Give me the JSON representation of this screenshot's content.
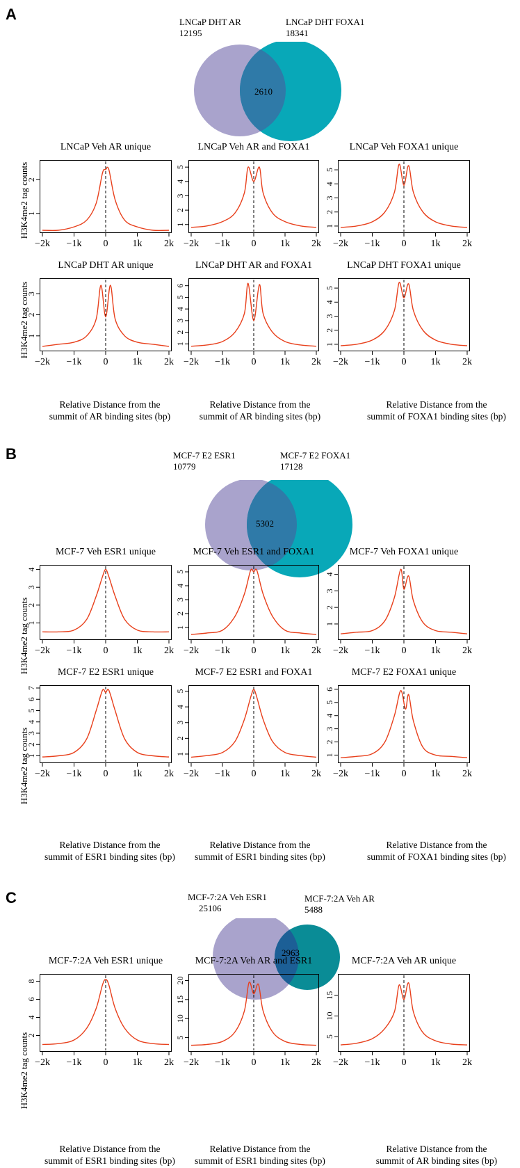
{
  "colors": {
    "curve": "#e8401c",
    "venn_left": "#a9a3cc",
    "venn_right": "#08a8b8",
    "venn_overlap": "#2f7aa8"
  },
  "panels": [
    {
      "letter": "A",
      "venn": {
        "left": {
          "name": "LNCaP DHT AR",
          "count": "12195"
        },
        "right": {
          "name": "LNCaP DHT FOXA1",
          "count": "18341"
        },
        "overlap": "2610"
      },
      "ylabel": "H3K4me2 tag counts",
      "xcaptions": [
        "Relative Distance from the\nsummit of AR binding sites (bp)",
        "Relative Distance from the\nsummit of AR binding sites (bp)",
        "Relative Distance from the\nsummit of FOXA1 binding sites (bp)"
      ]
    },
    {
      "letter": "B",
      "venn": {
        "left": {
          "name": "MCF-7 E2 ESR1",
          "count": "10779"
        },
        "right": {
          "name": "MCF-7 E2 FOXA1",
          "count": "17128"
        },
        "overlap": "5302"
      },
      "ylabel": "H3K4me2 tag counts",
      "xcaptions": [
        "Relative Distance from the\nsummit of ESR1 binding sites (bp)",
        "Relative Distance from the\nsummit of ESR1 binding sites (bp)",
        "Relative Distance from the\nsummit of FOXA1 binding sites (bp)"
      ]
    },
    {
      "letter": "C",
      "venn": {
        "left": {
          "name": "MCF-7:2A Veh ESR1",
          "count": "25106"
        },
        "right": {
          "name": "MCF-7:2A Veh AR",
          "count": "5488"
        },
        "overlap": "2963"
      },
      "ylabel": "H3K4me2 tag counts",
      "xcaptions": [
        "Relative Distance from the\nsummit of ESR1 binding sites (bp)",
        "Relative Distance from the\nsummit of ESR1 binding sites (bp)",
        "Relative Distance from the\nsummit of AR binding sites (bp)"
      ]
    }
  ],
  "chart_data": [
    {
      "type": "line",
      "title": "LNCaP  Veh AR unique",
      "xlabel": "",
      "ylabel": "H3K4me2 tag counts",
      "xlim": [
        -2000,
        2000
      ],
      "ylim": [
        0.5,
        2.5
      ],
      "xticks": [
        "-2k",
        "-1k",
        "0",
        "1k",
        "2k"
      ],
      "yticks": [
        1,
        2
      ],
      "x": [
        -2000,
        -1500,
        -1000,
        -600,
        -300,
        -100,
        0,
        100,
        300,
        600,
        1000,
        1500,
        2000
      ],
      "values": [
        0.5,
        0.5,
        0.6,
        0.8,
        1.3,
        2.2,
        2.3,
        2.3,
        1.4,
        0.8,
        0.6,
        0.5,
        0.5
      ]
    },
    {
      "type": "line",
      "title": "LNCaP  Veh AR and FOXA1",
      "xlabel": "",
      "ylabel": "",
      "xlim": [
        -2000,
        2000
      ],
      "ylim": [
        0.6,
        5.3
      ],
      "xticks": [
        "-2k",
        "-1k",
        "0",
        "1k",
        "2k"
      ],
      "yticks": [
        1,
        2,
        3,
        4,
        5
      ],
      "x": [
        -2000,
        -1500,
        -1000,
        -600,
        -300,
        -180,
        0,
        180,
        300,
        600,
        1000,
        1500,
        2000
      ],
      "values": [
        0.8,
        0.9,
        1.2,
        1.8,
        3.2,
        5.0,
        4.0,
        5.0,
        3.2,
        1.8,
        1.2,
        0.9,
        0.8
      ]
    },
    {
      "type": "line",
      "title": "LNCaP Veh FOXA1 unique",
      "xlabel": "",
      "ylabel": "",
      "xlim": [
        -2000,
        2000
      ],
      "ylim": [
        0.7,
        5.5
      ],
      "xticks": [
        "-2k",
        "-1k",
        "0",
        "1k",
        "2k"
      ],
      "yticks": [
        1,
        2,
        3,
        4,
        5
      ],
      "x": [
        -2000,
        -1500,
        -1000,
        -600,
        -300,
        -150,
        0,
        150,
        300,
        600,
        1000,
        1500,
        2000
      ],
      "values": [
        0.9,
        1.0,
        1.3,
        2.0,
        3.4,
        5.4,
        3.9,
        5.3,
        3.4,
        2.0,
        1.3,
        1.0,
        0.9
      ]
    },
    {
      "type": "line",
      "title": "LNCaP DHT AR unique",
      "xlabel": "",
      "ylabel": "H3K4me2 tag counts",
      "xlim": [
        -2000,
        2000
      ],
      "ylim": [
        0.4,
        3.6
      ],
      "xticks": [
        "-2k",
        "-1k",
        "0",
        "1k",
        "2k"
      ],
      "yticks": [
        1,
        2,
        3
      ],
      "x": [
        -2000,
        -1500,
        -1000,
        -600,
        -300,
        -150,
        0,
        150,
        300,
        600,
        1000,
        1500,
        2000
      ],
      "values": [
        0.5,
        0.6,
        0.7,
        1.0,
        1.8,
        3.4,
        1.9,
        3.4,
        1.8,
        1.0,
        0.7,
        0.6,
        0.5
      ]
    },
    {
      "type": "line",
      "title": "LNCaP  DHT AR and FOXA1",
      "xlabel": "",
      "ylabel": "",
      "xlim": [
        -2000,
        2000
      ],
      "ylim": [
        0.6,
        6.4
      ],
      "xticks": [
        "-2k",
        "-1k",
        "0",
        "1k",
        "2k"
      ],
      "yticks": [
        1,
        2,
        3,
        4,
        5,
        6
      ],
      "x": [
        -2000,
        -1500,
        -1000,
        -600,
        -300,
        -180,
        0,
        180,
        300,
        600,
        1000,
        1500,
        2000
      ],
      "values": [
        0.8,
        0.9,
        1.2,
        2.0,
        3.6,
        6.2,
        3.0,
        6.1,
        3.6,
        2.0,
        1.2,
        0.9,
        0.8
      ]
    },
    {
      "type": "line",
      "title": "LNCaP DHT FOXA1 unique",
      "xlabel": "",
      "ylabel": "",
      "xlim": [
        -2000,
        2000
      ],
      "ylim": [
        0.7,
        5.5
      ],
      "xticks": [
        "-2k",
        "-1k",
        "0",
        "1k",
        "2k"
      ],
      "yticks": [
        1,
        2,
        3,
        4,
        5
      ],
      "x": [
        -2000,
        -1500,
        -1000,
        -600,
        -300,
        -150,
        0,
        150,
        300,
        600,
        1000,
        1500,
        2000
      ],
      "values": [
        0.9,
        1.0,
        1.3,
        2.0,
        3.4,
        5.4,
        4.3,
        5.3,
        3.4,
        2.0,
        1.3,
        1.0,
        0.9
      ]
    },
    {
      "type": "line",
      "title": "MCF-7 Veh ESR1  unique",
      "xlabel": "",
      "ylabel": "H3K4me2 tag counts",
      "xlim": [
        -2000,
        2000
      ],
      "ylim": [
        0.2,
        4.1
      ],
      "xticks": [
        "-2k",
        "-1k",
        "0",
        "1k",
        "2k"
      ],
      "yticks": [
        1,
        2,
        3,
        4
      ],
      "x": [
        -2000,
        -1500,
        -1000,
        -600,
        -300,
        -100,
        0,
        100,
        300,
        600,
        1000,
        1500,
        2000
      ],
      "values": [
        0.5,
        0.5,
        0.6,
        1.2,
        2.5,
        3.6,
        4.0,
        3.6,
        2.5,
        1.2,
        0.6,
        0.5,
        0.5
      ]
    },
    {
      "type": "line",
      "title": "MCF-7 Veh ESR1 and FOXA1",
      "xlabel": "",
      "ylabel": "",
      "xlim": [
        -2000,
        2000
      ],
      "ylim": [
        0.3,
        5.3
      ],
      "xticks": [
        "-2k",
        "-1k",
        "0",
        "1k",
        "2k"
      ],
      "yticks": [
        1,
        2,
        3,
        4,
        5
      ],
      "x": [
        -2000,
        -1500,
        -1000,
        -600,
        -300,
        -100,
        0,
        100,
        300,
        600,
        1000,
        1500,
        2000
      ],
      "values": [
        0.5,
        0.6,
        0.8,
        1.8,
        3.4,
        5.1,
        5.0,
        5.1,
        3.4,
        1.8,
        0.8,
        0.6,
        0.5
      ]
    },
    {
      "type": "line",
      "title": "MCF-7 Veh FOXA1 unique",
      "xlabel": "",
      "ylabel": "",
      "xlim": [
        -2000,
        2000
      ],
      "ylim": [
        0.2,
        4.4
      ],
      "xticks": [
        "-2k",
        "-1k",
        "0",
        "1k",
        "2k"
      ],
      "yticks": [
        1,
        2,
        3,
        4
      ],
      "x": [
        -2000,
        -1500,
        -1000,
        -600,
        -300,
        -100,
        0,
        150,
        300,
        600,
        1000,
        1500,
        2000
      ],
      "values": [
        0.4,
        0.5,
        0.6,
        1.2,
        2.6,
        4.3,
        3.1,
        3.9,
        2.4,
        1.1,
        0.6,
        0.5,
        0.4
      ]
    },
    {
      "type": "line",
      "title": "MCF-7 E2 ESR1 unique",
      "xlabel": "",
      "ylabel": "H3K4me2 tag counts",
      "xlim": [
        -2000,
        2000
      ],
      "ylim": [
        0.6,
        7.0
      ],
      "xticks": [
        "-2k",
        "-1k",
        "0",
        "1k",
        "2k"
      ],
      "yticks": [
        1,
        2,
        3,
        4,
        5,
        6,
        7
      ],
      "x": [
        -2000,
        -1500,
        -1000,
        -600,
        -300,
        -100,
        0,
        100,
        300,
        600,
        1000,
        1500,
        2000
      ],
      "values": [
        0.9,
        1.0,
        1.3,
        2.5,
        5.0,
        6.8,
        6.6,
        6.8,
        5.0,
        2.5,
        1.3,
        1.0,
        0.9
      ]
    },
    {
      "type": "line",
      "title": "MCF-7 E2 ESR1 and FOXA1",
      "xlabel": "",
      "ylabel": "",
      "xlim": [
        -2000,
        2000
      ],
      "ylim": [
        0.6,
        5.2
      ],
      "xticks": [
        "-2k",
        "-1k",
        "0",
        "1k",
        "2k"
      ],
      "yticks": [
        1,
        2,
        3,
        4,
        5
      ],
      "x": [
        -2000,
        -1500,
        -1000,
        -600,
        -300,
        -100,
        0,
        100,
        300,
        600,
        1000,
        1500,
        2000
      ],
      "values": [
        0.8,
        0.9,
        1.1,
        1.8,
        3.2,
        4.6,
        5.1,
        4.6,
        3.2,
        1.8,
        1.1,
        0.9,
        0.8
      ]
    },
    {
      "type": "line",
      "title": "MCF-7 E2  FOXA1 unique",
      "xlabel": "",
      "ylabel": "",
      "xlim": [
        -2000,
        2000
      ],
      "ylim": [
        0.6,
        6.1
      ],
      "xticks": [
        "-2k",
        "-1k",
        "0",
        "1k",
        "2k"
      ],
      "yticks": [
        1,
        2,
        3,
        4,
        5,
        6
      ],
      "x": [
        -2000,
        -1500,
        -1000,
        -600,
        -300,
        -100,
        50,
        150,
        300,
        600,
        1000,
        1500,
        2000
      ],
      "values": [
        0.8,
        0.9,
        1.1,
        2.0,
        4.0,
        5.9,
        4.5,
        5.6,
        3.6,
        1.6,
        1.0,
        0.9,
        0.8
      ]
    },
    {
      "type": "line",
      "title": "MCF-7:2A Veh ESR1 unique",
      "xlabel": "",
      "ylabel": "H3K4me2 tag counts",
      "xlim": [
        -2000,
        2000
      ],
      "ylim": [
        0.5,
        8.5
      ],
      "xticks": [
        "-2k",
        "-1k",
        "0",
        "1k",
        "2k"
      ],
      "yticks": [
        2,
        4,
        6,
        8
      ],
      "x": [
        -2000,
        -1500,
        -1000,
        -600,
        -300,
        -100,
        0,
        100,
        300,
        600,
        1000,
        1500,
        2000
      ],
      "values": [
        1.0,
        1.1,
        1.5,
        2.8,
        5.0,
        7.6,
        8.2,
        7.6,
        5.0,
        2.8,
        1.5,
        1.1,
        1.0
      ]
    },
    {
      "type": "line",
      "title": "MCF-7:2A Veh AR and ESR1",
      "xlabel": "",
      "ylabel": "",
      "xlim": [
        -2000,
        2000
      ],
      "ylim": [
        2.0,
        21.0
      ],
      "xticks": [
        "-2k",
        "-1k",
        "0",
        "1k",
        "2k"
      ],
      "yticks": [
        5,
        10,
        15,
        20
      ],
      "x": [
        -2000,
        -1500,
        -1000,
        -600,
        -300,
        -150,
        0,
        150,
        300,
        600,
        1000,
        1500,
        2000
      ],
      "values": [
        3.0,
        3.2,
        4.0,
        6.5,
        12.0,
        19.5,
        16.5,
        19.0,
        12.0,
        6.5,
        4.0,
        3.2,
        3.0
      ]
    },
    {
      "type": "line",
      "title": "MCF-7:2A Veh  AR unique",
      "xlabel": "",
      "ylabel": "",
      "xlim": [
        -2000,
        2000
      ],
      "ylim": [
        2.0,
        19.5
      ],
      "xticks": [
        "-2k",
        "-1k",
        "0",
        "1k",
        "2k"
      ],
      "yticks": [
        5,
        10,
        15
      ],
      "x": [
        -2000,
        -1500,
        -1000,
        -600,
        -300,
        -150,
        0,
        150,
        300,
        600,
        1000,
        1500,
        2000
      ],
      "values": [
        3.0,
        3.4,
        4.5,
        7.0,
        11.0,
        17.5,
        14.0,
        18.0,
        11.0,
        6.0,
        4.0,
        3.2,
        3.0
      ]
    }
  ]
}
